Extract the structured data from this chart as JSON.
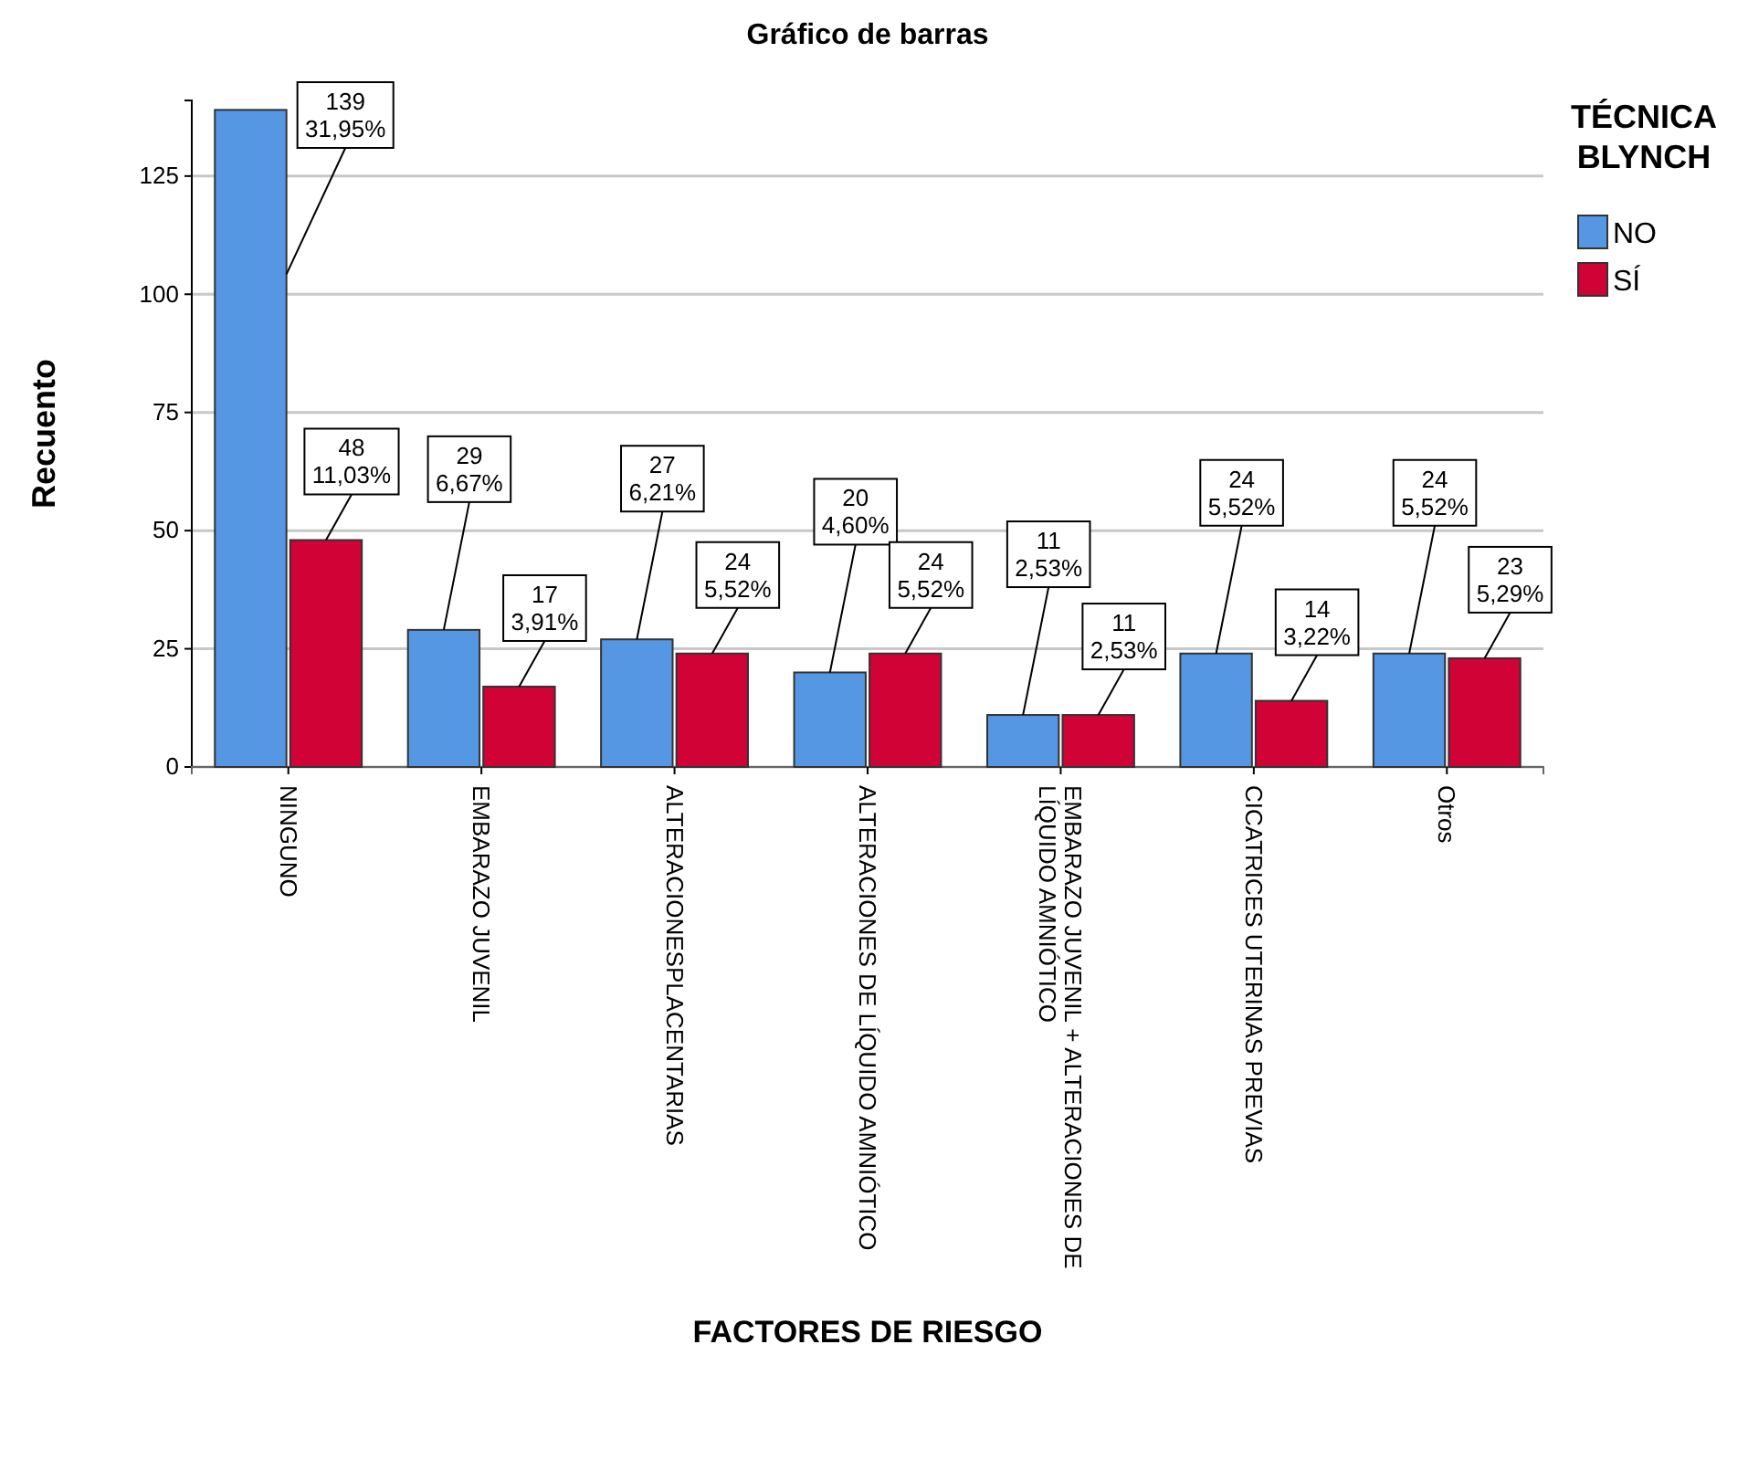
{
  "chart_data": {
    "type": "bar",
    "title": "Gráfico de barras",
    "xlabel": "FACTORES DE RIESGO",
    "ylabel": "Recuento",
    "legend_title": "TÉCNICA BLYNCH",
    "categories": [
      "NINGUNO",
      "EMBARAZO JUVENIL",
      "ALTERACIONESPLACENTARIAS",
      "ALTERACIONES DE LÍQUIDO AMNIÓTICO",
      "EMBARAZO JUVENIL + ALTERACIONES DE LÍQUIDO AMNIÓTICO",
      "CICATRICES UTERINAS PREVIAS",
      "Otros"
    ],
    "series": [
      {
        "name": "NO",
        "color": "#5597e3",
        "values": [
          139,
          29,
          27,
          20,
          11,
          24,
          24
        ],
        "value_labels": [
          "139\n31,95%",
          "29\n6,67%",
          "27\n6,21%",
          "20\n4,60%",
          "11\n2,53%",
          "24\n5,52%",
          "24\n5,52%"
        ]
      },
      {
        "name": "SÍ",
        "color": "#d10236",
        "values": [
          48,
          17,
          24,
          24,
          11,
          14,
          23
        ],
        "value_labels": [
          "48\n11,03%",
          "17\n3,91%",
          "24\n5,52%",
          "24\n5,52%",
          "11\n2,53%",
          "14\n3,22%",
          "23\n5,29%"
        ]
      }
    ],
    "ylim": [
      0,
      141
    ],
    "yticks": [
      0,
      25,
      50,
      75,
      100,
      125
    ],
    "grid": "y",
    "legend": "top right"
  }
}
